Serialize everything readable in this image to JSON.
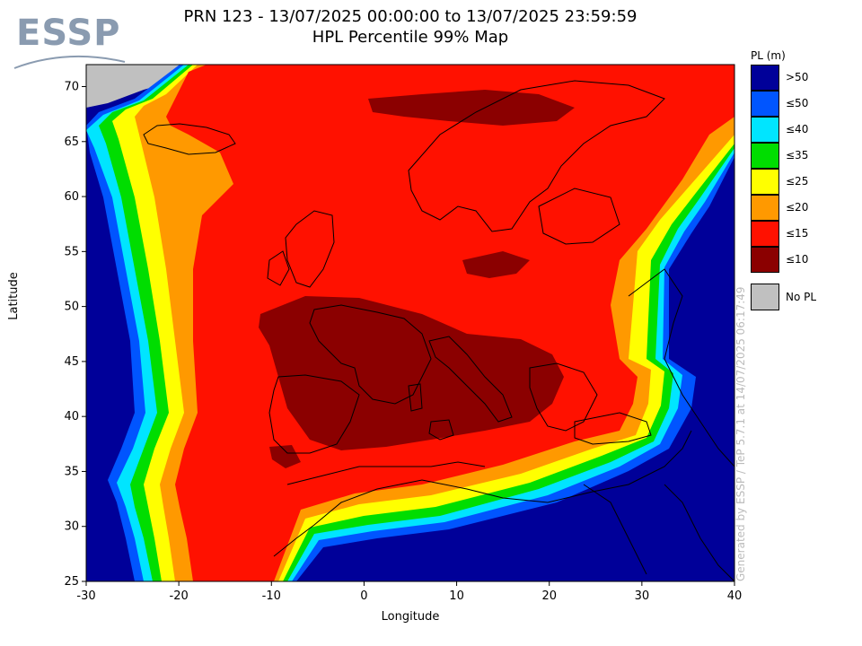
{
  "logo": {
    "text": "ESSP"
  },
  "title": {
    "line1": "PRN 123 - 13/07/2025 00:00:00 to 13/07/2025 23:59:59",
    "line2": "HPL Percentile 99% Map"
  },
  "axes": {
    "xlabel": "Longitude",
    "ylabel": "Latitude",
    "xticks": [
      -30,
      -20,
      -10,
      0,
      10,
      20,
      30,
      40
    ],
    "yticks": [
      25,
      30,
      35,
      40,
      45,
      50,
      55,
      60,
      65,
      70
    ],
    "xlim": [
      -30,
      40
    ],
    "ylim": [
      25,
      72
    ]
  },
  "legend": {
    "title": "PL (m)",
    "items": [
      {
        "label": ">50",
        "color": "#000099"
      },
      {
        "label": "≤50",
        "color": "#0055ff"
      },
      {
        "label": "≤40",
        "color": "#00e5ff"
      },
      {
        "label": "≤35",
        "color": "#00dd00"
      },
      {
        "label": "≤25",
        "color": "#ffff00"
      },
      {
        "label": "≤20",
        "color": "#ff9900"
      },
      {
        "label": "≤15",
        "color": "#ff1100"
      },
      {
        "label": "≤10",
        "color": "#8b0000"
      }
    ],
    "no_pl": {
      "label": "No PL",
      "color": "#c0c0c0"
    }
  },
  "watermark": "Generated by ESSP / TeP 5.7.1 at 14/07/2025 06:17:49"
}
